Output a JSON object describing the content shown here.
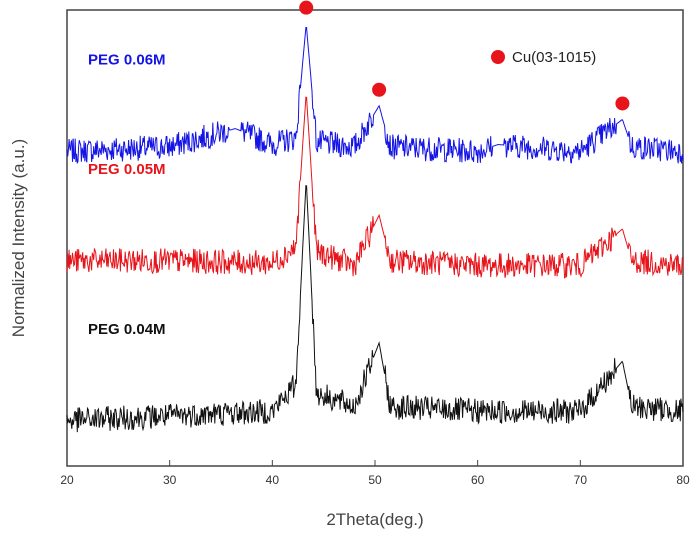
{
  "chart_data": {
    "type": "line",
    "title": "",
    "xlabel": "2Theta(deg.)",
    "ylabel": "Normalized Intensity (a.u.)",
    "xlim": [
      20,
      80
    ],
    "ylim": [
      0,
      100
    ],
    "x_ticks": [
      "20",
      "30",
      "40",
      "50",
      "60",
      "70",
      "80"
    ],
    "grid": false,
    "legend": {
      "entries": [
        {
          "label": "Cu(03-1015)",
          "color": "#e8141b",
          "marker": "circle"
        }
      ],
      "placement": "top-right"
    },
    "peak_markers": {
      "label": "Cu(03-1015)",
      "positions": [
        43.3,
        50.4,
        74.1
      ]
    },
    "series": [
      {
        "name": "PEG 0.06M",
        "color": "#1414e6",
        "points": [
          [
            20,
            69
          ],
          [
            30,
            70
          ],
          [
            36.4,
            74
          ],
          [
            40,
            70.5
          ],
          [
            42.3,
            72
          ],
          [
            43.3,
            97
          ],
          [
            44.3,
            71
          ],
          [
            48,
            70
          ],
          [
            50.4,
            79
          ],
          [
            51.5,
            70
          ],
          [
            60,
            69
          ],
          [
            62,
            70.5
          ],
          [
            70,
            69
          ],
          [
            74.1,
            76
          ],
          [
            75,
            70
          ],
          [
            80,
            69
          ]
        ]
      },
      {
        "name": "PEG 0.05M",
        "color": "#e8141b",
        "points": [
          [
            20,
            45
          ],
          [
            30,
            45
          ],
          [
            40,
            44.5
          ],
          [
            42.3,
            48
          ],
          [
            43.3,
            82
          ],
          [
            44.3,
            47
          ],
          [
            48,
            44
          ],
          [
            50.4,
            55
          ],
          [
            51.5,
            45
          ],
          [
            60,
            44
          ],
          [
            70,
            44
          ],
          [
            74.1,
            52
          ],
          [
            75,
            45
          ],
          [
            80,
            44
          ]
        ]
      },
      {
        "name": "PEG 0.04M",
        "color": "#111111",
        "points": [
          [
            20,
            10
          ],
          [
            30,
            11
          ],
          [
            40,
            12
          ],
          [
            42.3,
            18
          ],
          [
            43.3,
            63
          ],
          [
            44.3,
            16
          ],
          [
            48,
            13
          ],
          [
            50.4,
            27
          ],
          [
            51.5,
            13
          ],
          [
            60,
            12
          ],
          [
            70,
            12
          ],
          [
            74.1,
            23
          ],
          [
            75,
            13
          ],
          [
            80,
            12
          ]
        ]
      }
    ]
  }
}
